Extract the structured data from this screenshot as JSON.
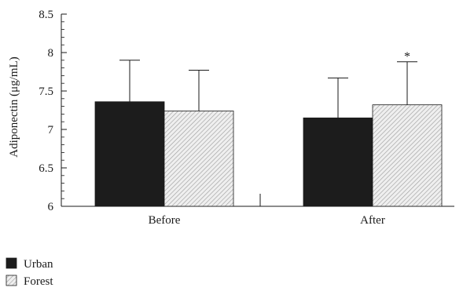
{
  "chart_data": {
    "type": "bar",
    "categories": [
      "Before",
      "After"
    ],
    "series": [
      {
        "name": "Urban",
        "values": [
          7.36,
          7.15
        ],
        "error": [
          0.54,
          0.52
        ],
        "color": "#1c1c1c",
        "pattern": "solid"
      },
      {
        "name": "Forest",
        "values": [
          7.24,
          7.32
        ],
        "error": [
          0.53,
          0.56
        ],
        "color": "#d9d9d9",
        "pattern": "hatched"
      }
    ],
    "ylabel": "Adiponectin (μg/mL)",
    "ylim": [
      6,
      8.5
    ],
    "yticks": [
      "6",
      "6.5",
      "7",
      "7.5",
      "8",
      "8.5"
    ],
    "annotations": [
      {
        "category": "After",
        "series": "Forest",
        "text": "*"
      }
    ],
    "legend_position": "bottom-left",
    "grid": false
  }
}
